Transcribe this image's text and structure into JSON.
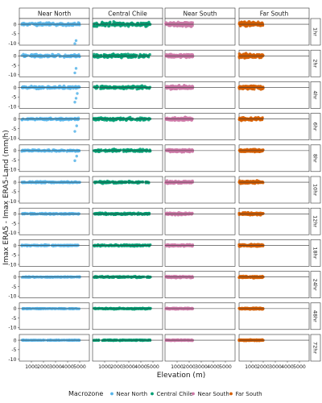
{
  "chart_data": {
    "type": "scatter",
    "title": "",
    "xlabel": "Elevation (m)",
    "ylabel": "Imax ERA5 - Imax ERA5-Land (mm/h)",
    "facet_columns": [
      "Near North",
      "Central Chile",
      "Near South",
      "Far South"
    ],
    "facet_rows": [
      "1hr",
      "2hr",
      "4hr",
      "6hr",
      "8hr",
      "10hr",
      "12hr",
      "18hr",
      "24hr",
      "48hr",
      "72hr"
    ],
    "x_ticks": [
      "1000",
      "2000",
      "3000",
      "4000",
      "5000"
    ],
    "y_ticks": [
      "0",
      "-5",
      "-10"
    ],
    "xlim": [
      0,
      5800
    ],
    "ylim": [
      -11,
      3
    ],
    "grid": false,
    "reference_line_y": 0,
    "legend": {
      "title": "Macrozone",
      "placement": "bottom",
      "entries": [
        "Near North",
        "Central Chile",
        "Near South",
        "Far South"
      ]
    },
    "series": [
      {
        "name": "Near North",
        "color": "#56B4E9",
        "x_range": [
          200,
          5000
        ],
        "spread_by_duration": [
          1.6,
          1.5,
          1.3,
          1.1,
          0.9,
          0.8,
          0.7,
          0.6,
          0.45,
          0.3,
          0.2
        ],
        "outliers": [
          [
            4600,
            -10.2
          ],
          [
            4700,
            -7.5
          ],
          [
            4700,
            -8.6
          ],
          [
            4750,
            -5.6
          ],
          [
            4800,
            -4.2
          ]
        ]
      },
      {
        "name": "Central Chile",
        "color": "#009E73",
        "x_range": [
          100,
          4800
        ],
        "spread_by_duration": [
          2.4,
          2.0,
          1.7,
          1.5,
          1.3,
          1.2,
          1.1,
          0.9,
          0.8,
          0.6,
          0.45
        ],
        "outliers": []
      },
      {
        "name": "Near South",
        "color": "#CC79A7",
        "x_range": [
          50,
          2300
        ],
        "spread_by_duration": [
          2.3,
          2.0,
          1.8,
          1.6,
          1.4,
          1.3,
          1.2,
          1.0,
          0.9,
          0.7,
          0.5
        ],
        "outliers": []
      },
      {
        "name": "Far South",
        "color": "#D55E00",
        "x_range": [
          0,
          2000
        ],
        "spread_by_duration": [
          2.4,
          2.1,
          1.9,
          1.7,
          1.5,
          1.4,
          1.3,
          1.1,
          1.0,
          0.8,
          0.6
        ],
        "outliers": []
      }
    ]
  }
}
